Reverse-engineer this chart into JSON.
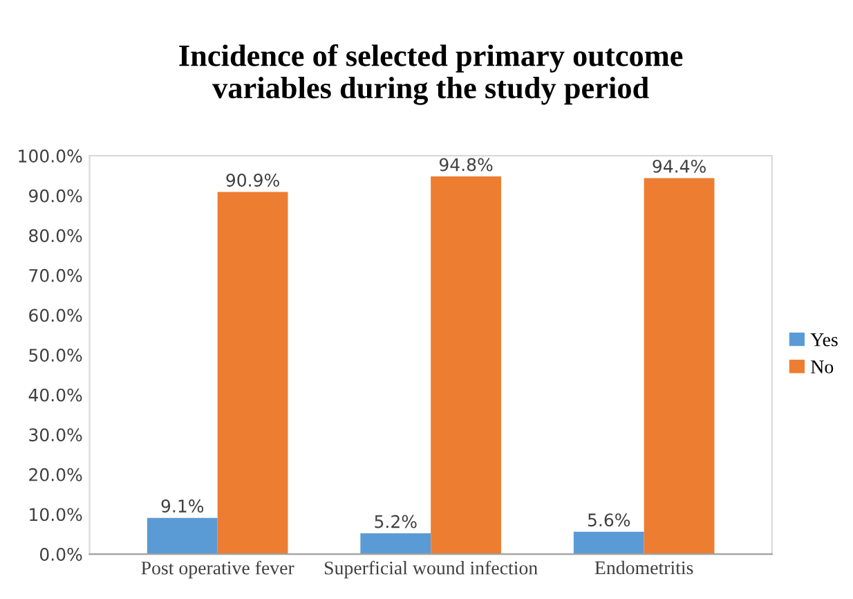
{
  "chart_data": {
    "type": "bar",
    "title": "Incidence of selected primary outcome\nvariables during the study period",
    "categories": [
      "Post operative fever",
      "Superficial wound infection",
      "Endometritis"
    ],
    "series": [
      {
        "name": "Yes",
        "color": "#5b9bd5",
        "values": [
          9.1,
          5.2,
          5.6
        ],
        "value_labels": [
          "9.1%",
          "5.2%",
          "5.6%"
        ]
      },
      {
        "name": "No",
        "color": "#ed7d31",
        "values": [
          90.9,
          94.8,
          94.4
        ],
        "value_labels": [
          "90.9%",
          "94.8%",
          "94.4%"
        ]
      }
    ],
    "ylim": [
      0,
      100
    ],
    "yticks": [
      {
        "value": 0,
        "label": "0.0%"
      },
      {
        "value": 10,
        "label": "10.0%"
      },
      {
        "value": 20,
        "label": "20.0%"
      },
      {
        "value": 30,
        "label": "30.0%"
      },
      {
        "value": 40,
        "label": "40.0%"
      },
      {
        "value": 50,
        "label": "50.0%"
      },
      {
        "value": 60,
        "label": "60.0%"
      },
      {
        "value": 70,
        "label": "70.0%"
      },
      {
        "value": 80,
        "label": "80.0%"
      },
      {
        "value": 90,
        "label": "90.0%"
      },
      {
        "value": 100,
        "label": "100.0%"
      }
    ],
    "grid": false,
    "legend": "right"
  }
}
